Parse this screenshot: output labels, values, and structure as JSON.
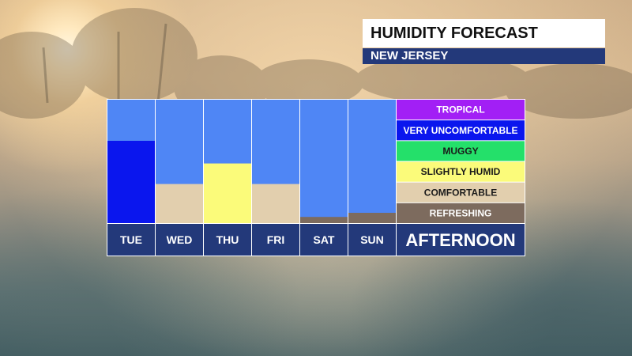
{
  "header": {
    "title": "HUMIDITY FORECAST",
    "subtitle": "NEW JERSEY"
  },
  "colors": {
    "bar_background": "#4f86f5",
    "footer_background": "#23397a",
    "divider": "#ffffff"
  },
  "chart_data": {
    "type": "bar",
    "title": "HUMIDITY FORECAST",
    "subtitle": "NEW JERSEY",
    "footer_label": "AFTERNOON",
    "categories": [
      "TUE",
      "WED",
      "THU",
      "FRI",
      "SAT",
      "SUN"
    ],
    "values": [
      4.0,
      1.9,
      2.9,
      1.9,
      0.3,
      0.5
    ],
    "value_levels": [
      "VERY UNCOMFORTABLE",
      "COMFORTABLE",
      "SLIGHTLY HUMID",
      "COMFORTABLE",
      "REFRESHING",
      "REFRESHING"
    ],
    "ylim": [
      0,
      6
    ],
    "levels": [
      {
        "label": "REFRESHING",
        "color": "#7d6b5e",
        "text_color": "#ffffff"
      },
      {
        "label": "COMFORTABLE",
        "color": "#e2cfae",
        "text_color": "#1a1a1a"
      },
      {
        "label": "SLIGHTLY HUMID",
        "color": "#fbfb7a",
        "text_color": "#1a1a1a"
      },
      {
        "label": "MUGGY",
        "color": "#24e06a",
        "text_color": "#1a1a1a"
      },
      {
        "label": "VERY UNCOMFORTABLE",
        "color": "#0a16ee",
        "text_color": "#ffffff"
      },
      {
        "label": "TROPICAL",
        "color": "#a21ff5",
        "text_color": "#ffffff"
      }
    ],
    "legend_position": "right",
    "grid": false
  }
}
